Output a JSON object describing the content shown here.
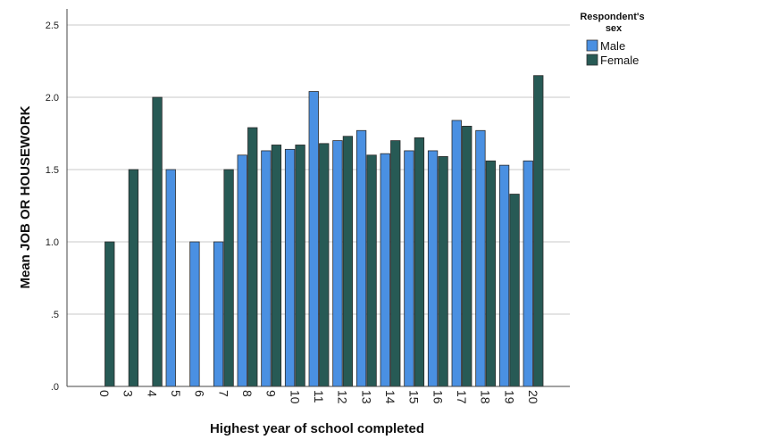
{
  "chart_data": {
    "type": "bar",
    "title": "",
    "xlabel": "Highest year of school completed",
    "ylabel": "Mean JOB OR HOUSEWORK",
    "ylim": [
      0,
      2.5
    ],
    "yticks": [
      0,
      0.5,
      1.0,
      1.5,
      2.0,
      2.5
    ],
    "ytick_labels": [
      ".0",
      ".5",
      "1.0",
      "1.5",
      "2.0",
      "2.5"
    ],
    "grid": true,
    "categories": [
      "0",
      "3",
      "4",
      "5",
      "6",
      "7",
      "8",
      "9",
      "10",
      "11",
      "12",
      "13",
      "14",
      "15",
      "16",
      "17",
      "18",
      "19",
      "20"
    ],
    "series": [
      {
        "name": "Male",
        "color": "#4a90e2",
        "values": [
          null,
          null,
          null,
          1.5,
          1.0,
          1.0,
          1.6,
          1.63,
          1.64,
          2.04,
          1.7,
          1.77,
          1.61,
          1.63,
          1.63,
          1.84,
          1.77,
          1.53,
          1.56
        ]
      },
      {
        "name": "Female",
        "color": "#275a55",
        "values": [
          1.0,
          1.5,
          2.0,
          null,
          null,
          1.5,
          1.79,
          1.67,
          1.67,
          1.68,
          1.73,
          1.6,
          1.7,
          1.72,
          1.59,
          1.8,
          1.56,
          1.33,
          2.15
        ]
      }
    ],
    "legend": {
      "title_line1": "Respondent's",
      "title_line2": "sex",
      "position": "top-right"
    }
  }
}
